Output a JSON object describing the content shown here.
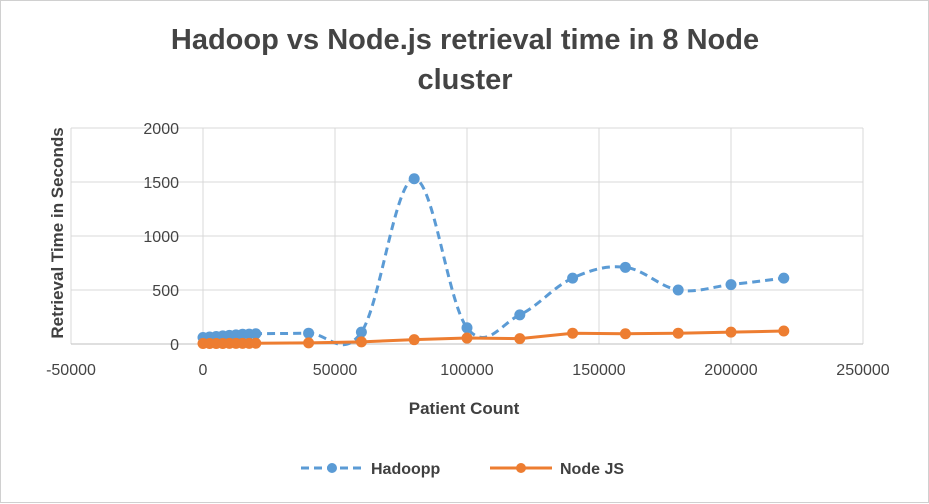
{
  "chart_data": {
    "type": "scatter",
    "title_lines": [
      "Hadoop vs Node.js retrieval time in 8 Node",
      "cluster"
    ],
    "xlabel": "Patient Count",
    "ylabel": "Retrieval Time in Seconds",
    "xlim": [
      -50000,
      250000
    ],
    "ylim": [
      0,
      2000
    ],
    "x_ticks": [
      -50000,
      0,
      50000,
      100000,
      150000,
      200000,
      250000
    ],
    "y_ticks": [
      0,
      500,
      1000,
      1500,
      2000
    ],
    "grid": "vertical and horizontal",
    "legend_position": "bottom",
    "series": [
      {
        "name": "Hadoopp",
        "color": "#5b9bd5",
        "line_style": "dashed",
        "smooth": true,
        "x": [
          0,
          2500,
          5000,
          7500,
          10000,
          12500,
          15000,
          17500,
          20000,
          40000,
          60000,
          80000,
          100000,
          120000,
          140000,
          160000,
          180000,
          200000,
          220000
        ],
        "y": [
          60,
          65,
          70,
          75,
          80,
          85,
          90,
          92,
          95,
          100,
          110,
          1530,
          150,
          270,
          610,
          710,
          500,
          550,
          610
        ]
      },
      {
        "name": "Node JS",
        "color": "#ed7d31",
        "line_style": "solid",
        "smooth": false,
        "x": [
          0,
          2500,
          5000,
          7500,
          10000,
          12500,
          15000,
          17500,
          20000,
          40000,
          60000,
          80000,
          100000,
          120000,
          140000,
          160000,
          180000,
          200000,
          220000
        ],
        "y": [
          5,
          5,
          5,
          5,
          6,
          6,
          6,
          6,
          7,
          10,
          20,
          40,
          55,
          50,
          100,
          95,
          100,
          110,
          120
        ]
      }
    ]
  }
}
